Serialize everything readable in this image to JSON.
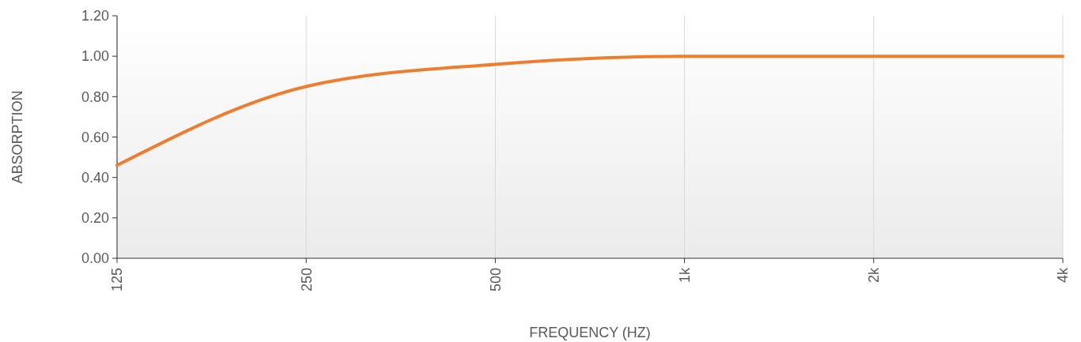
{
  "chart_data": {
    "type": "line",
    "xlabel": "FREQUENCY (HZ)",
    "ylabel": "ABSORPTION",
    "categories": [
      "125",
      "250",
      "500",
      "1k",
      "2k",
      "4k"
    ],
    "series": [
      {
        "color": "#ed7d31",
        "values": [
          0.46,
          0.85,
          0.96,
          1.0,
          1.0,
          1.0
        ]
      }
    ],
    "ylim": [
      0,
      1.2
    ],
    "yticks": [
      {
        "value": 0,
        "label": "0.00"
      },
      {
        "value": 0.2,
        "label": "0.20"
      },
      {
        "value": 0.4,
        "label": "0.40"
      },
      {
        "value": 0.6,
        "label": "0.60"
      },
      {
        "value": 0.8,
        "label": "0.80"
      },
      {
        "value": 1.0,
        "label": "1.00"
      },
      {
        "value": 1.2,
        "label": "1.20"
      }
    ],
    "grid": "x"
  }
}
